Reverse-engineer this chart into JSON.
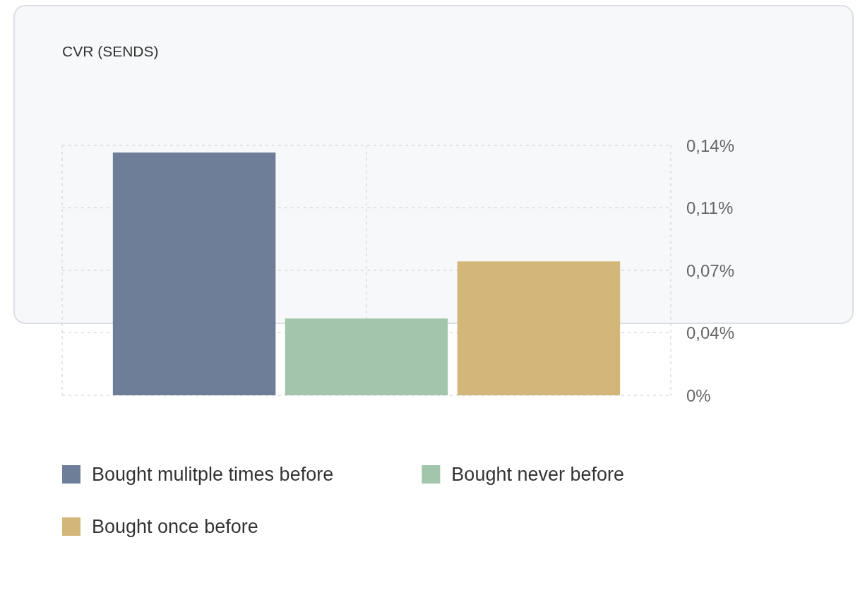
{
  "chart_data": {
    "type": "bar",
    "title": "CVR (SENDS)",
    "categories": [
      null
    ],
    "series": [
      {
        "name": "Bought mulitple times before",
        "color": "#6e7e98",
        "values": [
          0.136
        ]
      },
      {
        "name": "Bought never before",
        "color": "#a3c5ab",
        "values": [
          0.043
        ]
      },
      {
        "name": "Bought once before",
        "color": "#d3b77a",
        "values": [
          0.075
        ]
      }
    ],
    "ylim": [
      0,
      0.14
    ],
    "yticks": [
      {
        "value": 0,
        "label": "0%"
      },
      {
        "value": 0.035,
        "label": "0,04%"
      },
      {
        "value": 0.07,
        "label": "0,07%"
      },
      {
        "value": 0.105,
        "label": "0,11%"
      },
      {
        "value": 0.14,
        "label": "0,14%"
      }
    ],
    "grid": true,
    "legend": "bottom"
  }
}
